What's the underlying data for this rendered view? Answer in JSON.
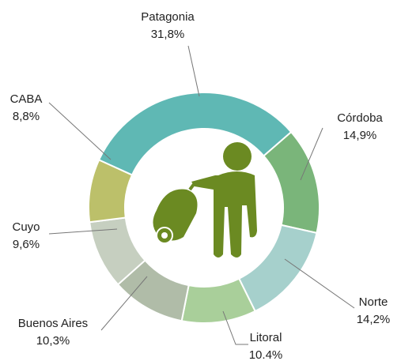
{
  "chart_data": {
    "type": "donut",
    "categories": [
      "Patagonia",
      "Córdoba",
      "Norte",
      "Litoral",
      "Buenos Aires",
      "Cuyo",
      "CABA"
    ],
    "values": [
      31.8,
      14.9,
      14.2,
      10.4,
      10.3,
      9.6,
      8.8
    ],
    "value_labels": [
      "31,8%",
      "14,9%",
      "14,2%",
      "10.4%",
      "10,3%",
      "9,6%",
      "8,8%"
    ],
    "colors": [
      "#5fb8b4",
      "#7ab57a",
      "#a6d0cc",
      "#a9cf9a",
      "#b0bca8",
      "#c6cfc0",
      "#bcc06a"
    ]
  }
}
